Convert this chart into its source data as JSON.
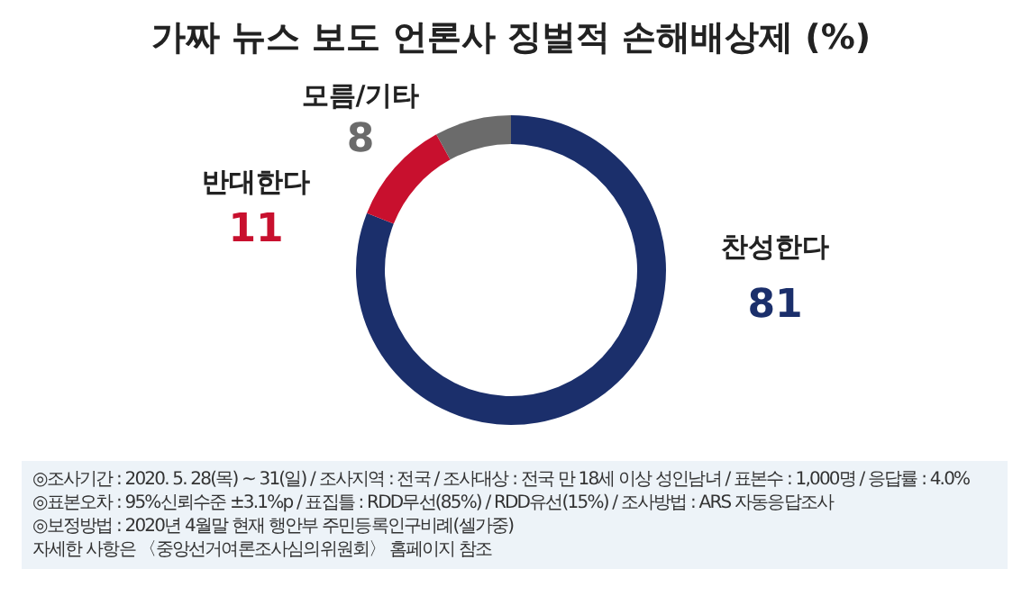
{
  "chart_data": {
    "type": "donut",
    "title": "가짜 뉴스 보도 언론사 징벌적 손해배상제 (%)",
    "categories": [
      "찬성한다",
      "반대한다",
      "모름/기타"
    ],
    "values": [
      81,
      11,
      8
    ],
    "colors": [
      "#1b2f6b",
      "#c8102e",
      "#6b6b6b"
    ],
    "data_labels": true,
    "annotations": [
      "◎조사기간 : 2020. 5. 28(목) ~ 31(일) / 조사지역 : 전국 / 조사대상 : 전국 만 18세 이상 성인남녀 / 표본수 : 1,000명 / 응답률 : 4.0%",
      "◎표본오차 : 95%신뢰수준 ±3.1%p / 표집틀 : RDD무선(85%) / RDD유선(15%) / 조사방법 : ARS 자동응답조사",
      "◎보정방법 : 2020년 4월말 현재 행안부 주민등록인구비례(셀가중)",
      "자세한 사항은 〈중앙선거여론조사심의위원회〉 홈페이지 참조"
    ]
  }
}
